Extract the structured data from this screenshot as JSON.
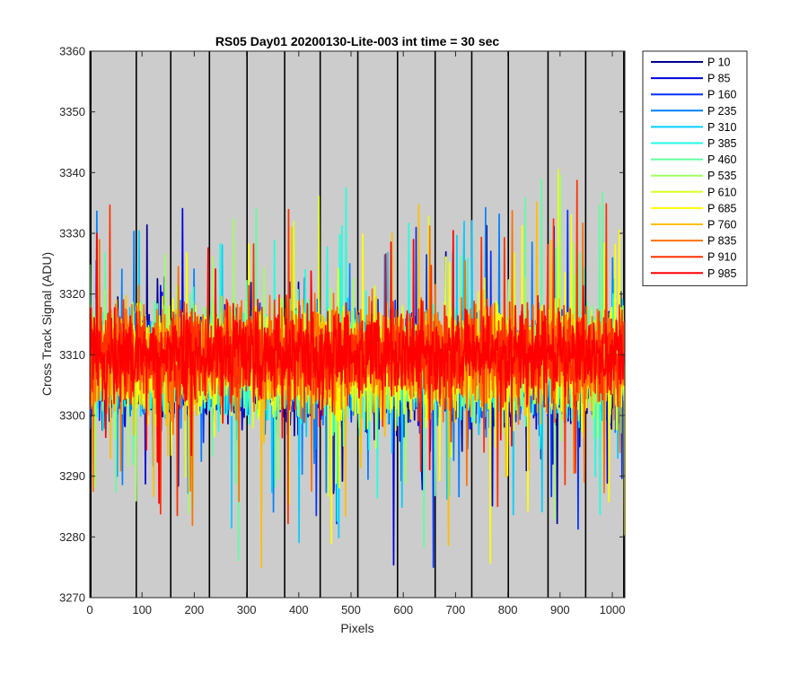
{
  "chart_data": {
    "type": "line",
    "title": "RS05 Day01 20200130-Lite-003 int time = 30 sec",
    "xlabel": "Pixels",
    "ylabel": "Cross Track Signal (ADU)",
    "xlim": [
      0,
      1024
    ],
    "ylim": [
      3270,
      3360
    ],
    "xticks": [
      0,
      100,
      200,
      300,
      400,
      500,
      600,
      700,
      800,
      900,
      1000
    ],
    "yticks": [
      3270,
      3280,
      3290,
      3300,
      3310,
      3320,
      3330,
      3340,
      3350,
      3360
    ],
    "plot_background": "#cccccc",
    "vertical_lines_x": [
      2,
      89,
      155,
      229,
      301,
      373,
      441,
      513,
      589,
      661,
      731,
      801,
      877,
      949,
      1022
    ],
    "legend_location": "outside-top-right",
    "series": [
      {
        "name": "P 10",
        "color": "#00008f",
        "mean": 3307,
        "spread": 15,
        "n": 1024
      },
      {
        "name": "P 85",
        "color": "#0000df",
        "mean": 3307,
        "spread": 15,
        "n": 1024
      },
      {
        "name": "P 160",
        "color": "#0030ff",
        "mean": 3308,
        "spread": 15,
        "n": 1024
      },
      {
        "name": "P 235",
        "color": "#0080ff",
        "mean": 3308,
        "spread": 15,
        "n": 1024
      },
      {
        "name": "P 310",
        "color": "#00cfff",
        "mean": 3308,
        "spread": 15,
        "n": 1024
      },
      {
        "name": "P 385",
        "color": "#20ffdf",
        "mean": 3308,
        "spread": 15,
        "n": 1024
      },
      {
        "name": "P 460",
        "color": "#60ff9f",
        "mean": 3309,
        "spread": 15,
        "n": 1024
      },
      {
        "name": "P 535",
        "color": "#9fff60",
        "mean": 3309,
        "spread": 15,
        "n": 1024
      },
      {
        "name": "P 610",
        "color": "#dfff20",
        "mean": 3309,
        "spread": 15,
        "n": 1024
      },
      {
        "name": "P 685",
        "color": "#ffff00",
        "mean": 3309,
        "spread": 15,
        "n": 1024
      },
      {
        "name": "P 760",
        "color": "#ffbf00",
        "mean": 3309,
        "spread": 15,
        "n": 1024
      },
      {
        "name": "P 835",
        "color": "#ff7000",
        "mean": 3310,
        "spread": 15,
        "n": 1024
      },
      {
        "name": "P 910",
        "color": "#ff3000",
        "mean": 3310,
        "spread": 14,
        "n": 1024
      },
      {
        "name": "P 985",
        "color": "#ff0000",
        "mean": 3310,
        "spread": 12,
        "n": 1024
      }
    ]
  }
}
